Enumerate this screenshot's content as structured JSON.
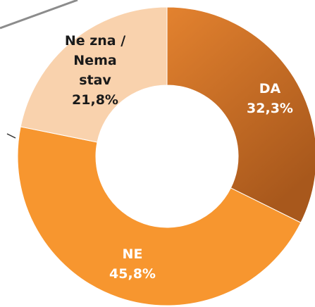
{
  "chart_data": {
    "type": "pie",
    "categories": [
      "DA",
      "NE",
      "Ne zna / Nema stav"
    ],
    "values": [
      32.3,
      45.8,
      21.8
    ],
    "value_labels": [
      "32,3%",
      "45,8%",
      "21,8%"
    ],
    "colors": [
      "#d46f1f",
      "#f7962f",
      "#f9d2ad"
    ]
  }
}
